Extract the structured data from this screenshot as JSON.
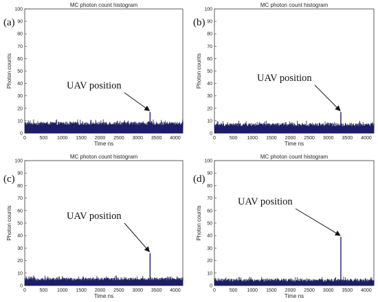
{
  "chart_data": [
    {
      "type": "bar",
      "panel_label": "(a)",
      "title": "MC photon count histogram",
      "xlabel": "Time ns",
      "ylabel": "Photon counts",
      "xlim": [
        0,
        4200
      ],
      "ylim": [
        0,
        100
      ],
      "xticks": [
        "0",
        "500",
        "1000",
        "1500",
        "2000",
        "2500",
        "3000",
        "3500",
        "4000"
      ],
      "yticks": [
        "0",
        "10",
        "20",
        "30",
        "40",
        "50",
        "60",
        "70",
        "80",
        "90",
        "100"
      ],
      "grid": false,
      "series": [
        {
          "noise_floor": 6.5,
          "noise_max": 11,
          "peak_x": 3330,
          "peak_value": 17
        }
      ],
      "annotation": {
        "text": "UAV position",
        "target_x": 3330,
        "target_y": 17
      },
      "color": "#1c1c6b"
    },
    {
      "type": "bar",
      "panel_label": "(b)",
      "title": "MC photon count histogram",
      "xlabel": "Time ns",
      "ylabel": "Photon counts",
      "xlim": [
        0,
        4200
      ],
      "ylim": [
        0,
        100
      ],
      "xticks": [
        "0",
        "500",
        "1000",
        "1500",
        "2000",
        "2500",
        "3000",
        "3500",
        "4000"
      ],
      "yticks": [
        "0",
        "10",
        "20",
        "30",
        "40",
        "50",
        "60",
        "70",
        "80",
        "90",
        "100"
      ],
      "grid": false,
      "series": [
        {
          "noise_floor": 5.5,
          "noise_max": 10,
          "peak_x": 3330,
          "peak_value": 17
        }
      ],
      "annotation": {
        "text": "UAV position",
        "target_x": 3330,
        "target_y": 17
      },
      "color": "#1c1c6b"
    },
    {
      "type": "bar",
      "panel_label": "(c)",
      "title": "MC photon count histogram",
      "xlabel": "Time ns",
      "ylabel": "Photon counts",
      "xlim": [
        0,
        4200
      ],
      "ylim": [
        0,
        100
      ],
      "xticks": [
        "0",
        "500",
        "1000",
        "1500",
        "2000",
        "2500",
        "3000",
        "3500",
        "4000"
      ],
      "yticks": [
        "0",
        "10",
        "20",
        "30",
        "40",
        "50",
        "60",
        "70",
        "80",
        "90",
        "100"
      ],
      "grid": false,
      "series": [
        {
          "noise_floor": 4,
          "noise_max": 8,
          "peak_x": 3330,
          "peak_value": 26
        }
      ],
      "annotation": {
        "text": "UAV position",
        "target_x": 3330,
        "target_y": 26
      },
      "color": "#1c1c6b"
    },
    {
      "type": "bar",
      "panel_label": "(d)",
      "title": "MC photon count histogram",
      "xlabel": "Time ns",
      "ylabel": "Photon counts",
      "xlim": [
        0,
        4200
      ],
      "ylim": [
        0,
        100
      ],
      "xticks": [
        "0",
        "500",
        "1000",
        "1500",
        "2000",
        "2500",
        "3000",
        "3500",
        "4000"
      ],
      "yticks": [
        "0",
        "10",
        "20",
        "30",
        "40",
        "50",
        "60",
        "70",
        "80",
        "90",
        "100"
      ],
      "grid": false,
      "series": [
        {
          "noise_floor": 3,
          "noise_max": 7,
          "peak_x": 3330,
          "peak_value": 39
        }
      ],
      "annotation": {
        "text": "UAV position",
        "target_x": 3330,
        "target_y": 39
      },
      "color": "#1c1c6b"
    }
  ]
}
